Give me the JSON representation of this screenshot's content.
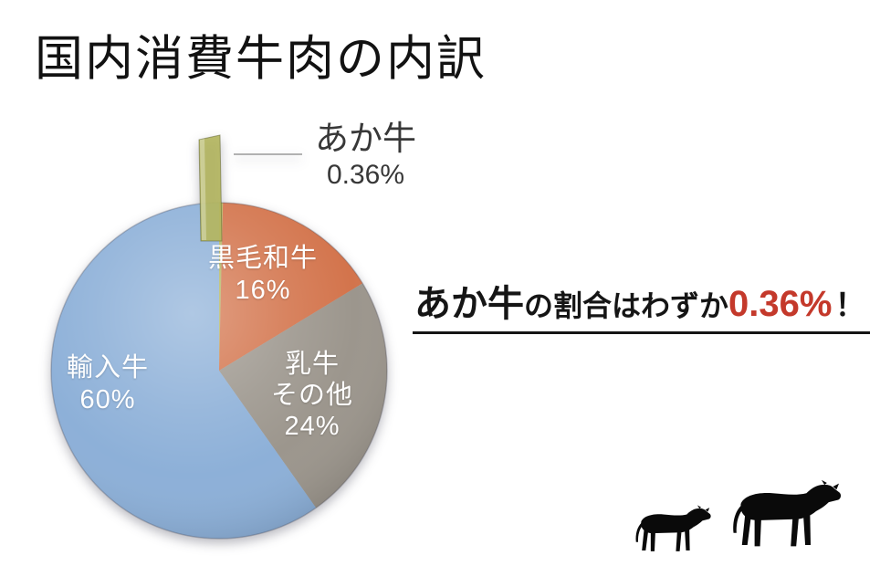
{
  "title": "国内消費牛肉の内訳",
  "callout": {
    "label": "あか牛",
    "value": "0.36%"
  },
  "statement": {
    "lead": "あか牛",
    "middle": "の割合はわずか",
    "value": "0.36%",
    "bang": "！",
    "value_color": "#c4392b"
  },
  "icons": {
    "calf": "calf-silhouette",
    "cow": "cow-silhouette"
  },
  "colors": {
    "background": "#ffffff",
    "title_text": "#121212",
    "pie_label_text": "#ffffff",
    "callout_text": "#383838",
    "leader_line": "#999999",
    "underline": "#151515",
    "cow_silhouette": "#0a0a0a"
  },
  "chart_data": {
    "type": "pie",
    "title": "国内消費牛肉の内訳",
    "unit": "%",
    "direction": "clockwise",
    "start_angle_deg": 0,
    "exploded_slice": "あか牛",
    "legend_position": "none",
    "categories": [
      "あか牛",
      "黒毛和牛",
      "乳牛その他",
      "輸入牛"
    ],
    "values": [
      0.36,
      16,
      24,
      60
    ],
    "slices": [
      {
        "label": "あか牛",
        "value": 0.36,
        "display_value": "0.36%",
        "color": "#b4b661"
      },
      {
        "label": "黒毛和牛",
        "value": 16,
        "display_value": "16%",
        "color": "#d3744c"
      },
      {
        "label": "乳牛その他",
        "label_line1": "乳牛",
        "label_line2": "その他",
        "value": 24,
        "display_value": "24%",
        "color": "#9c968d"
      },
      {
        "label": "輸入牛",
        "value": 60,
        "display_value": "60%",
        "color": "#8db0d8"
      }
    ]
  }
}
